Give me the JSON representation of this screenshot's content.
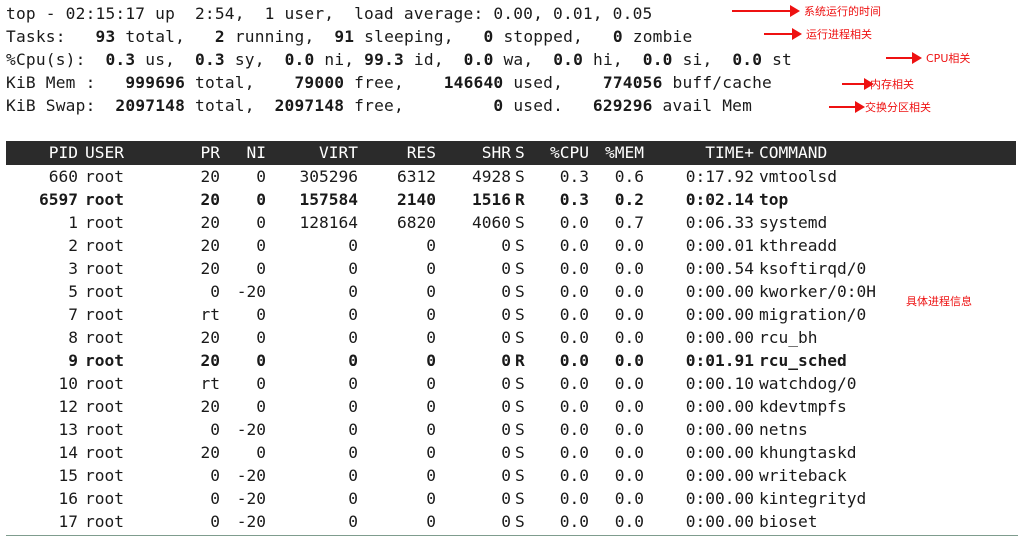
{
  "summary": {
    "line1": "top - 02:15:17 up  2:54,  1 user,  load average: 0.00, 0.01, 0.05",
    "tasks": {
      "label": "Tasks:",
      "total": "93",
      "total_lbl": "total,",
      "running": "2",
      "running_lbl": "running,",
      "sleeping": "91",
      "sleeping_lbl": "sleeping,",
      "stopped": "0",
      "stopped_lbl": "stopped,",
      "zombie": "0",
      "zombie_lbl": "zombie"
    },
    "cpu": {
      "label": "%Cpu(s):",
      "us": "0.3",
      "us_lbl": "us,",
      "sy": "0.3",
      "sy_lbl": "sy,",
      "ni": "0.0",
      "ni_lbl": "ni,",
      "id": "99.3",
      "id_lbl": "id,",
      "wa": "0.0",
      "wa_lbl": "wa,",
      "hi": "0.0",
      "hi_lbl": "hi,",
      "si": "0.0",
      "si_lbl": "si,",
      "st": "0.0",
      "st_lbl": "st"
    },
    "mem": {
      "label": "KiB Mem :",
      "total": "999696",
      "total_lbl": "total,",
      "free": "79000",
      "free_lbl": "free,",
      "used": "146640",
      "used_lbl": "used,",
      "cache": "774056",
      "cache_lbl": "buff/cache"
    },
    "swap": {
      "label": "KiB Swap:",
      "total": "2097148",
      "total_lbl": "total,",
      "free": "2097148",
      "free_lbl": "free,",
      "used": "0",
      "used_lbl": "used.",
      "avail": "629296",
      "avail_lbl": "avail Mem"
    }
  },
  "annotations": {
    "uptime": "系统运行的时间",
    "tasks": "运行进程相关",
    "cpu": "CPU相关",
    "mem": "内存相关",
    "swap": "交换分区相关",
    "process": "具体进程信息"
  },
  "table": {
    "headers": [
      "PID",
      "USER",
      "PR",
      "NI",
      "VIRT",
      "RES",
      "SHR",
      "S",
      "%CPU",
      "%MEM",
      "TIME+",
      "COMMAND"
    ],
    "rows": [
      [
        "660",
        "root",
        "20",
        "0",
        "305296",
        "6312",
        "4928",
        "S",
        "0.3",
        "0.6",
        "0:17.92",
        "vmtoolsd"
      ],
      [
        "6597",
        "root",
        "20",
        "0",
        "157584",
        "2140",
        "1516",
        "R",
        "0.3",
        "0.2",
        "0:02.14",
        "top"
      ],
      [
        "1",
        "root",
        "20",
        "0",
        "128164",
        "6820",
        "4060",
        "S",
        "0.0",
        "0.7",
        "0:06.33",
        "systemd"
      ],
      [
        "2",
        "root",
        "20",
        "0",
        "0",
        "0",
        "0",
        "S",
        "0.0",
        "0.0",
        "0:00.01",
        "kthreadd"
      ],
      [
        "3",
        "root",
        "20",
        "0",
        "0",
        "0",
        "0",
        "S",
        "0.0",
        "0.0",
        "0:00.54",
        "ksoftirqd/0"
      ],
      [
        "5",
        "root",
        "0",
        "-20",
        "0",
        "0",
        "0",
        "S",
        "0.0",
        "0.0",
        "0:00.00",
        "kworker/0:0H"
      ],
      [
        "7",
        "root",
        "rt",
        "0",
        "0",
        "0",
        "0",
        "S",
        "0.0",
        "0.0",
        "0:00.00",
        "migration/0"
      ],
      [
        "8",
        "root",
        "20",
        "0",
        "0",
        "0",
        "0",
        "S",
        "0.0",
        "0.0",
        "0:00.00",
        "rcu_bh"
      ],
      [
        "9",
        "root",
        "20",
        "0",
        "0",
        "0",
        "0",
        "R",
        "0.0",
        "0.0",
        "0:01.91",
        "rcu_sched"
      ],
      [
        "10",
        "root",
        "rt",
        "0",
        "0",
        "0",
        "0",
        "S",
        "0.0",
        "0.0",
        "0:00.10",
        "watchdog/0"
      ],
      [
        "12",
        "root",
        "20",
        "0",
        "0",
        "0",
        "0",
        "S",
        "0.0",
        "0.0",
        "0:00.00",
        "kdevtmpfs"
      ],
      [
        "13",
        "root",
        "0",
        "-20",
        "0",
        "0",
        "0",
        "S",
        "0.0",
        "0.0",
        "0:00.00",
        "netns"
      ],
      [
        "14",
        "root",
        "20",
        "0",
        "0",
        "0",
        "0",
        "S",
        "0.0",
        "0.0",
        "0:00.00",
        "khungtaskd"
      ],
      [
        "15",
        "root",
        "0",
        "-20",
        "0",
        "0",
        "0",
        "S",
        "0.0",
        "0.0",
        "0:00.00",
        "writeback"
      ],
      [
        "16",
        "root",
        "0",
        "-20",
        "0",
        "0",
        "0",
        "S",
        "0.0",
        "0.0",
        "0:00.00",
        "kintegrityd"
      ],
      [
        "17",
        "root",
        "0",
        "-20",
        "0",
        "0",
        "0",
        "S",
        "0.0",
        "0.0",
        "0:00.00",
        "bioset"
      ]
    ],
    "bold_rows": [
      1,
      8
    ]
  },
  "colors": {
    "annotation": "#ee1111",
    "header_bg": "#2b2b2b"
  }
}
